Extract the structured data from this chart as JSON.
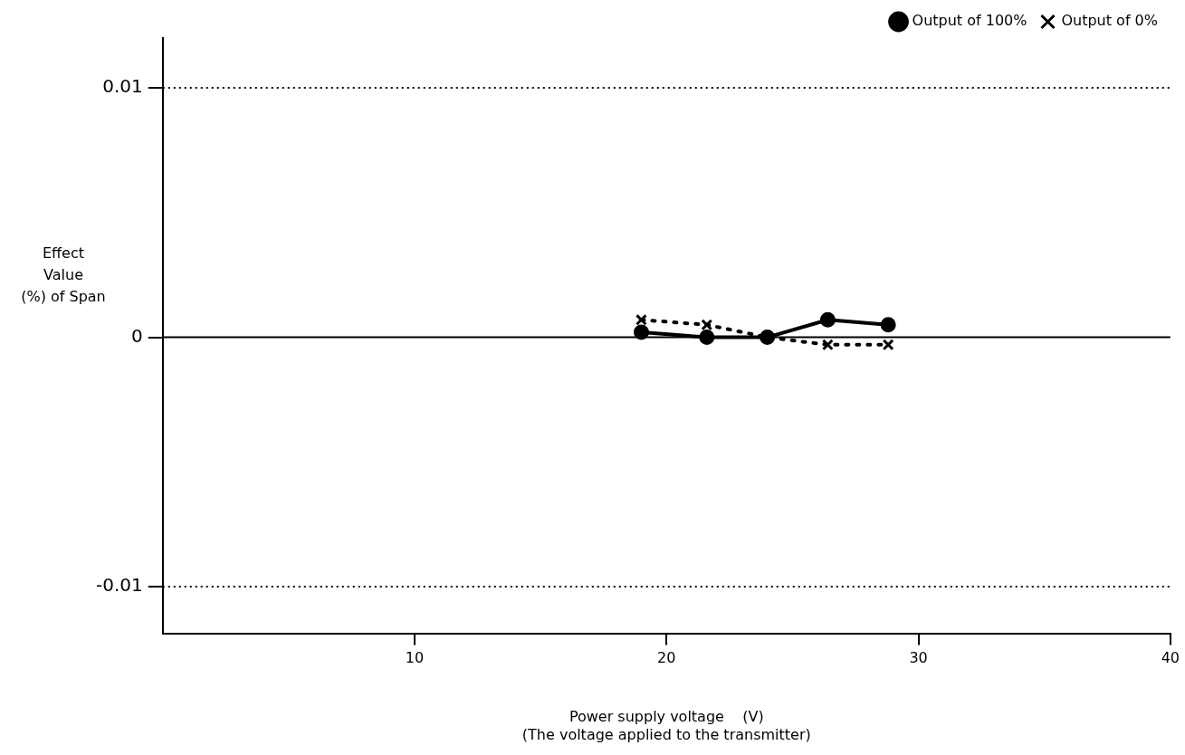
{
  "chart_data": {
    "type": "line",
    "xlabel": "Power supply voltage    (V)\n(The voltage applied to the transmitter)",
    "ylabel": "Effect\nValue\n(%) of Span",
    "x": [
      19,
      21.6,
      24,
      26.4,
      28.8
    ],
    "series": [
      {
        "name": "Output of 100%",
        "color": "#000000",
        "values": [
          0.0002,
          0,
          0,
          0.0007,
          0.0005
        ],
        "marker": "circle",
        "line_style": "solid"
      },
      {
        "name": "Output of 0%",
        "color": "#000000",
        "values": [
          0.0007,
          0.0005,
          0,
          -0.0003,
          -0.0003
        ],
        "marker": "cross",
        "line_style": "dotted"
      }
    ],
    "xlim": [
      0,
      40
    ],
    "xticks": [
      10,
      20,
      30,
      40
    ],
    "ylim": [
      -0.0119,
      0.012
    ],
    "yticks": [
      -0.01,
      0,
      0.01
    ],
    "ref_lines": [
      {
        "axis": "y",
        "value": 0.01,
        "line_style": "dotted"
      },
      {
        "axis": "y",
        "value": 0,
        "line_style": "solid"
      },
      {
        "axis": "y",
        "value": -0.01,
        "line_style": "dotted"
      }
    ],
    "grid": false,
    "legend": "top right"
  }
}
